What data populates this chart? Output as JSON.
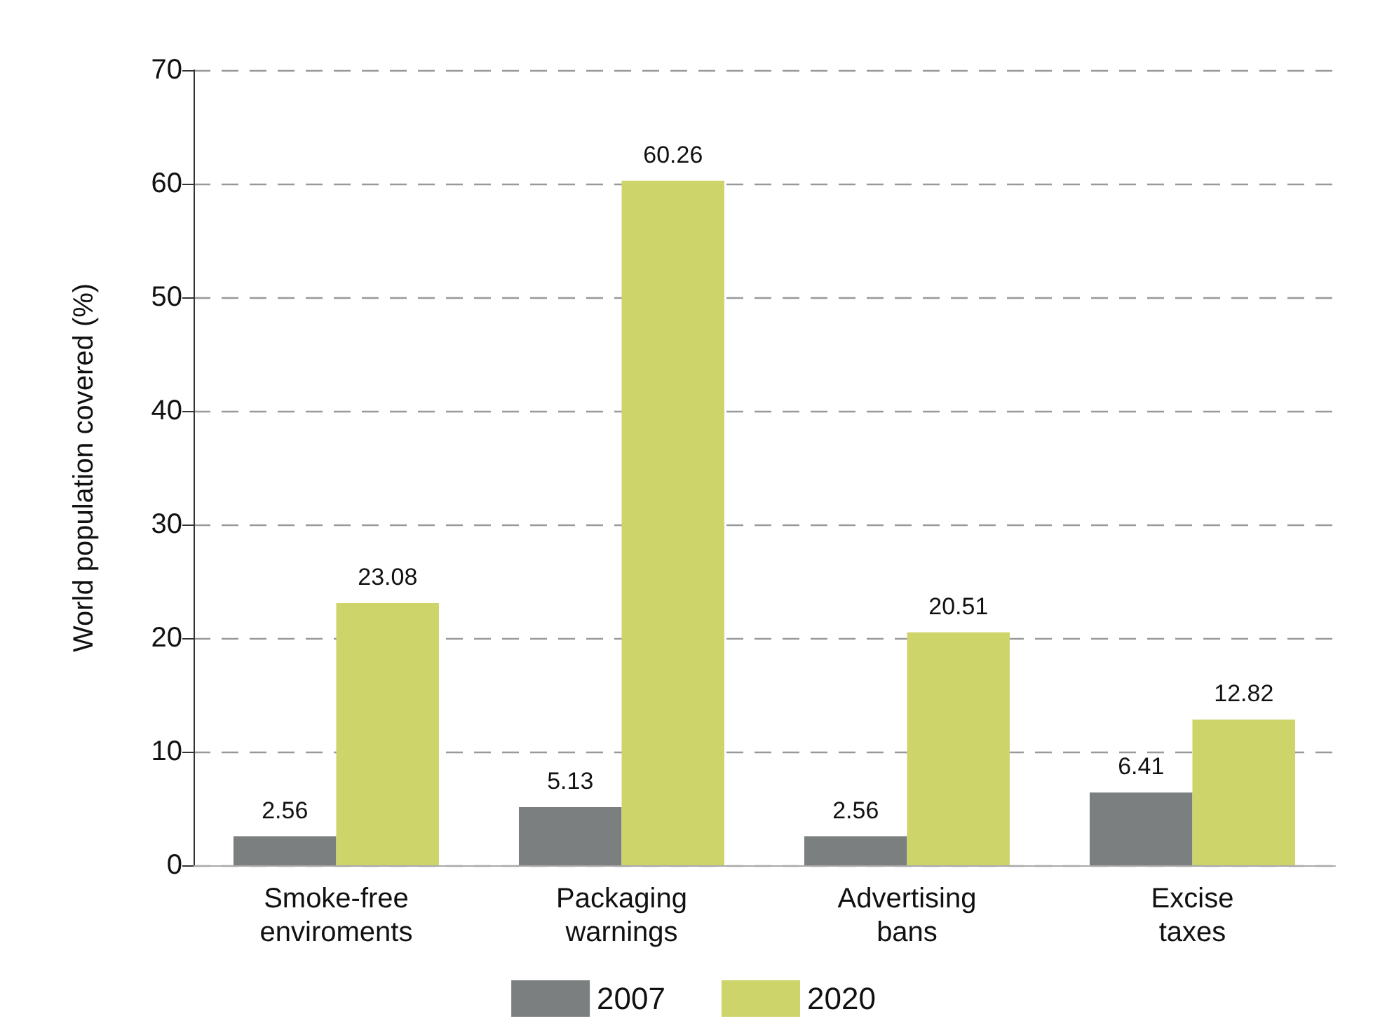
{
  "chart_data": {
    "type": "bar",
    "ylabel": "World population covered (%)",
    "categories": [
      "Smoke-free enviroments",
      "Packaging warnings",
      "Advertising bans",
      "Excise taxes"
    ],
    "series": [
      {
        "name": "2007",
        "color": "#7b7f7f",
        "values": [
          2.56,
          5.13,
          2.56,
          6.41
        ]
      },
      {
        "name": "2020",
        "color": "#cdd46a",
        "values": [
          23.08,
          60.26,
          20.51,
          12.82
        ]
      }
    ],
    "ylim": [
      0,
      70
    ],
    "yticks": [
      0,
      10,
      20,
      30,
      40,
      50,
      60,
      70
    ],
    "grid": "y",
    "legend": "bottom",
    "data_labels": true
  }
}
